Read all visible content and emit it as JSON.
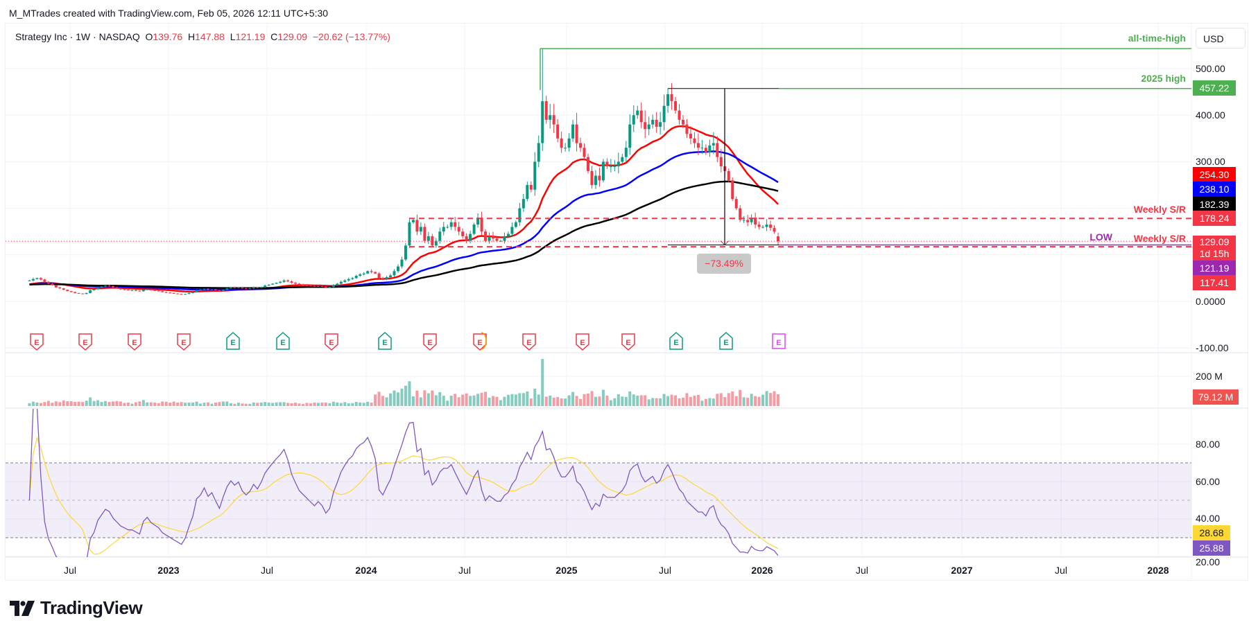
{
  "header": {
    "credit": "M_MTrades created with TradingView.com, Feb 05, 2026 12:11 UTC+5:30"
  },
  "legend": {
    "symbol": "Strategy Inc · 1W · NASDAQ",
    "o_label": "O",
    "o": "139.76",
    "h_label": "H",
    "h": "147.88",
    "l_label": "L",
    "l": "121.19",
    "c_label": "C",
    "c": "129.09",
    "change": "−20.62 (−13.77%)"
  },
  "currency": "USD",
  "colors": {
    "up": "#089981",
    "down": "#f23645",
    "ma_fast": "#ff0000",
    "ma_mid": "#0000ff",
    "ma_slow": "#000000",
    "rsi": "#7e57c2",
    "rsi_ma": "#fdd835",
    "level_green": "#4caf50",
    "low": "#9c27b0"
  },
  "price_axis": {
    "ticks": [
      {
        "value": 500,
        "label": "500.00"
      },
      {
        "value": 400,
        "label": "400.00"
      },
      {
        "value": 300,
        "label": "300.00"
      },
      {
        "value": 0,
        "label": "0.0000"
      },
      {
        "value": -100,
        "label": "-100.00"
      }
    ]
  },
  "price_labels": [
    {
      "label": "457.22",
      "color": "#4caf50"
    },
    {
      "label": "254.30",
      "color": "#ff0000"
    },
    {
      "label": "238.10",
      "color": "#0000ff"
    },
    {
      "label": "182.39",
      "color": "#000000"
    },
    {
      "label": "178.24",
      "color": "#f23645"
    },
    {
      "label": "129.09",
      "sub": "1d 15h",
      "color": "#f23645"
    },
    {
      "label": "121.19",
      "color": "#9c27b0"
    },
    {
      "label": "117.41",
      "color": "#f23645"
    }
  ],
  "drawings": {
    "ath": {
      "label": "all-time-high",
      "value": 543
    },
    "high_2025": {
      "label": "2025 high",
      "value": 457.22
    },
    "weekly_sr_1": {
      "label": "Weekly S/R",
      "value": 178.24
    },
    "weekly_sr_2": {
      "label": "Weekly S/R",
      "value": 117.41
    },
    "low": {
      "label": "LOW",
      "value": 121.19
    },
    "last_price": 129.09,
    "measure": {
      "label": "−73.49%",
      "from": 457.22,
      "to": 121.19
    }
  },
  "earnings": [
    "down",
    "down",
    "down",
    "down",
    "up",
    "up",
    "down",
    "up",
    "down",
    "down",
    "down",
    "down",
    "down",
    "up",
    "up",
    "future"
  ],
  "volume": {
    "tick_label": "200 M",
    "tick_value": 200,
    "last_label": "79.12 M",
    "last_value": 79.12,
    "base_by_year": {
      "2022": 22,
      "2023": 18,
      "2024": 55,
      "2025": 60,
      "2026": 80
    }
  },
  "rsi": {
    "ticks": [
      {
        "value": 80,
        "label": "80.00"
      },
      {
        "value": 60,
        "label": "60.00"
      },
      {
        "value": 40,
        "label": "40.00"
      },
      {
        "value": 20,
        "label": "20.00"
      }
    ],
    "upper": 70,
    "middle": 50,
    "lower": 30,
    "rsi_label": "25.88",
    "ma_label": "28.68",
    "length": 14
  },
  "time_axis": [
    {
      "label": "Jul",
      "bold": false
    },
    {
      "label": "2023",
      "bold": true
    },
    {
      "label": "Jul",
      "bold": false
    },
    {
      "label": "2024",
      "bold": true
    },
    {
      "label": "Jul",
      "bold": false
    },
    {
      "label": "2025",
      "bold": true
    },
    {
      "label": "Jul",
      "bold": false
    },
    {
      "label": "2026",
      "bold": true
    },
    {
      "label": "Jul",
      "bold": false
    },
    {
      "label": "2027",
      "bold": true
    },
    {
      "label": "Jul",
      "bold": false
    },
    {
      "label": "2028",
      "bold": true
    }
  ],
  "brand": "TradingView",
  "chart_data": {
    "type": "candlestick",
    "interval": "1W",
    "ma_lengths": [
      20,
      50,
      100
    ],
    "weekly_closes": [
      45,
      48,
      50,
      47,
      42,
      38,
      35,
      30,
      28,
      25,
      22,
      20,
      18,
      17,
      16,
      18,
      24,
      26,
      30,
      32,
      34,
      33,
      30,
      28,
      26,
      25,
      24,
      24,
      23,
      22,
      25,
      26,
      24,
      23,
      22,
      20,
      19,
      18,
      17,
      16,
      15,
      16,
      18,
      20,
      24,
      25,
      27,
      25,
      26,
      24,
      22,
      25,
      28,
      30,
      29,
      30,
      28,
      27,
      28,
      30,
      29,
      31,
      34,
      36,
      38,
      40,
      42,
      45,
      43,
      40,
      38,
      36,
      35,
      34,
      33,
      32,
      33,
      32,
      30,
      31,
      35,
      38,
      42,
      45,
      48,
      50,
      55,
      58,
      60,
      65,
      63,
      60,
      50,
      48,
      52,
      56,
      65,
      75,
      90,
      120,
      170,
      175,
      150,
      160,
      130,
      140,
      120,
      130,
      150,
      160,
      160,
      170,
      160,
      150,
      140,
      130,
      145,
      165,
      180,
      150,
      130,
      140,
      135,
      130,
      130,
      140,
      145,
      160,
      170,
      200,
      220,
      250,
      240,
      300,
      340,
      430,
      390,
      400,
      380,
      350,
      330,
      330,
      350,
      380,
      340,
      330,
      310,
      280,
      250,
      270,
      260,
      300,
      290,
      290,
      290,
      300,
      310,
      330,
      380,
      400,
      410,
      385,
      370,
      380,
      390,
      375,
      385,
      420,
      445,
      430,
      410,
      390,
      380,
      360,
      350,
      340,
      330,
      330,
      320,
      335,
      340,
      310,
      290,
      280,
      260,
      220,
      200,
      175,
      175,
      170,
      180,
      165,
      160,
      160,
      165,
      158,
      149.71,
      129.09
    ],
    "overrides": {
      "135": {
        "high": 543
      },
      "168": {
        "high": 457.22
      },
      "197": {
        "open": 139.76,
        "high": 147.88,
        "low": 121.19,
        "close": 129.09
      }
    },
    "ylim": [
      -100,
      550
    ]
  }
}
